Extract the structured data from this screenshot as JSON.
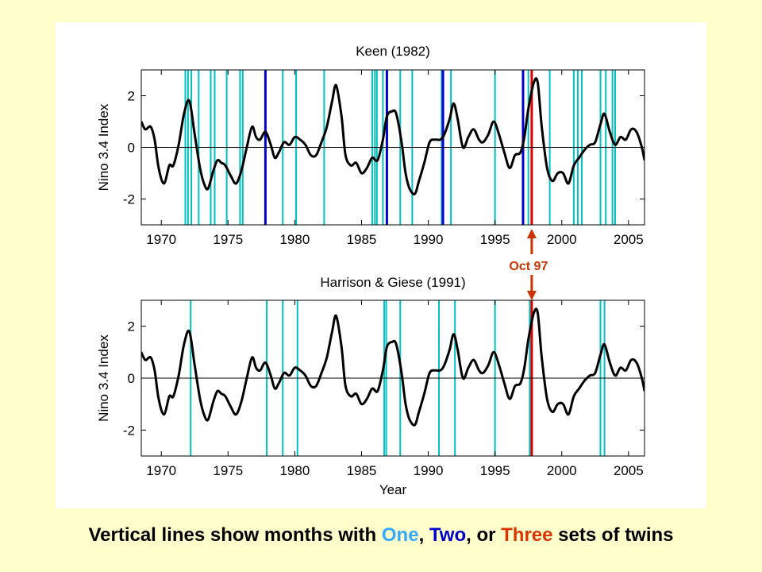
{
  "caption": {
    "prefix": "Vertical lines show months with ",
    "one": "One",
    "sep1": ", ",
    "two": "Two",
    "sep2": ", or ",
    "three": "Three",
    "suffix": " sets of twins"
  },
  "colors": {
    "one": "#00c0c0",
    "two": "#0000cc",
    "three": "#dd0000",
    "arrow": "#cc3300",
    "index_line": "#000000"
  },
  "annotation": {
    "label": "Oct 97",
    "x": 1997.75
  },
  "chart_data": [
    {
      "type": "line",
      "title": "Keen (1982)",
      "ylabel": "Nino 3.4 Index",
      "xlabel": "",
      "xlim": [
        1968.5,
        2006.2
      ],
      "ylim": [
        -3,
        3
      ],
      "xticks": [
        1970,
        1975,
        1980,
        1985,
        1990,
        1995,
        2000,
        2005
      ],
      "xtick_labels": [
        "1970",
        "1975",
        "1980",
        "1985",
        "1990",
        "1995",
        "2000",
        "2005"
      ],
      "yticks": [
        -2,
        0,
        2
      ],
      "ytick_labels": [
        "-2",
        "0",
        "2"
      ],
      "grid": false,
      "zero_line": true,
      "vlines_one": [
        1971.8,
        1972.0,
        1972.25,
        1972.8,
        1973.7,
        1974.0,
        1974.9,
        1975.9,
        1976.1,
        1979.1,
        1980.1,
        1982.2,
        1985.8,
        1986.0,
        1986.15,
        1986.6,
        1987.9,
        1988.8,
        1991.0,
        1991.7,
        1995.0,
        1997.5,
        1999.1,
        2000.9,
        2001.2,
        2001.5,
        2002.9,
        2003.3,
        2003.8,
        2004.0
      ],
      "vlines_two": [
        1977.8,
        1986.9,
        1991.1,
        1997.1
      ],
      "vlines_three": [
        1997.75
      ]
    },
    {
      "type": "line",
      "title": "Harrison & Giese (1991)",
      "ylabel": "Nino 3.4 Index",
      "xlabel": "Year",
      "xlim": [
        1968.5,
        2006.2
      ],
      "ylim": [
        -3,
        3
      ],
      "xticks": [
        1970,
        1975,
        1980,
        1985,
        1990,
        1995,
        2000,
        2005
      ],
      "xtick_labels": [
        "1970",
        "1975",
        "1980",
        "1985",
        "1990",
        "1995",
        "2000",
        "2005"
      ],
      "yticks": [
        -2,
        0,
        2
      ],
      "ytick_labels": [
        "-2",
        "0",
        "2"
      ],
      "grid": false,
      "zero_line": true,
      "vlines_one": [
        1972.2,
        1977.9,
        1979.1,
        1980.2,
        1986.7,
        1986.85,
        1987.9,
        1990.8,
        1992.0,
        1995.0,
        1997.6,
        2002.9,
        2003.2
      ],
      "vlines_two": [],
      "vlines_three": [
        1997.75
      ]
    }
  ],
  "nino_index": {
    "x": [
      1968.5,
      1968.8,
      1969.2,
      1969.5,
      1969.8,
      1970.2,
      1970.6,
      1970.9,
      1971.3,
      1971.7,
      1972.1,
      1972.5,
      1972.9,
      1973.2,
      1973.5,
      1973.9,
      1974.2,
      1974.5,
      1974.8,
      1975.2,
      1975.6,
      1976.0,
      1976.4,
      1976.8,
      1977.1,
      1977.4,
      1977.8,
      1978.2,
      1978.5,
      1978.8,
      1979.2,
      1979.6,
      1980.0,
      1980.4,
      1980.8,
      1981.2,
      1981.6,
      1982.0,
      1982.4,
      1982.8,
      1983.1,
      1983.5,
      1983.8,
      1984.2,
      1984.6,
      1985.0,
      1985.4,
      1985.8,
      1986.2,
      1986.6,
      1986.9,
      1987.3,
      1987.6,
      1988.0,
      1988.3,
      1988.6,
      1989.0,
      1989.3,
      1989.7,
      1990.1,
      1990.5,
      1990.9,
      1991.2,
      1991.6,
      1991.9,
      1992.2,
      1992.6,
      1993.0,
      1993.4,
      1993.8,
      1994.1,
      1994.5,
      1994.9,
      1995.3,
      1995.7,
      1996.1,
      1996.5,
      1996.9,
      1997.2,
      1997.5,
      1997.9,
      1998.2,
      1998.5,
      1998.9,
      1999.3,
      1999.7,
      2000.1,
      2000.5,
      2000.9,
      2001.3,
      2001.7,
      2002.1,
      2002.5,
      2002.9,
      2003.2,
      2003.6,
      2004.0,
      2004.4,
      2004.8,
      2005.2,
      2005.6,
      2006.0,
      2006.2
    ],
    "y": [
      1.0,
      0.7,
      0.8,
      0.3,
      -0.8,
      -1.4,
      -0.7,
      -0.7,
      0.1,
      1.3,
      1.8,
      0.5,
      -0.8,
      -1.4,
      -1.6,
      -0.9,
      -0.5,
      -0.6,
      -0.7,
      -1.1,
      -1.4,
      -0.9,
      0.0,
      0.8,
      0.4,
      0.3,
      0.6,
      0.1,
      -0.4,
      -0.2,
      0.2,
      0.1,
      0.4,
      0.3,
      0.1,
      -0.3,
      -0.3,
      0.2,
      0.8,
      1.8,
      2.4,
      1.2,
      -0.3,
      -0.7,
      -0.6,
      -1.0,
      -0.8,
      -0.4,
      -0.5,
      0.3,
      1.2,
      1.4,
      1.3,
      0.2,
      -1.0,
      -1.6,
      -1.8,
      -1.3,
      -0.6,
      0.2,
      0.3,
      0.3,
      0.5,
      1.1,
      1.7,
      1.1,
      0.0,
      0.4,
      0.7,
      0.3,
      0.2,
      0.5,
      1.0,
      0.5,
      -0.2,
      -0.8,
      -0.3,
      -0.2,
      0.4,
      1.5,
      2.5,
      2.5,
      0.8,
      -0.8,
      -1.3,
      -1.0,
      -1.0,
      -1.4,
      -0.7,
      -0.4,
      -0.1,
      0.1,
      0.2,
      0.9,
      1.3,
      0.6,
      0.1,
      0.4,
      0.3,
      0.7,
      0.6,
      0.0,
      -0.5
    ]
  }
}
